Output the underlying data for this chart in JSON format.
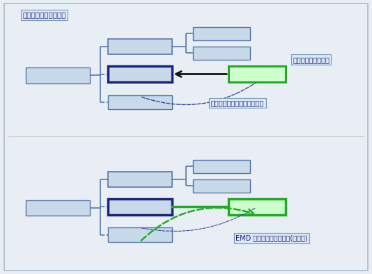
{
  "title": "现有嵌入树和引用关系",
  "bg_outer": "#e8eef4",
  "bg_panel": "#ffffff",
  "box_fill": "#c8daea",
  "box_edge_thin": "#5577aa",
  "box_edge_dark": "#1a237e",
  "box_fill_green": "#ccffcc",
  "box_edge_green": "#22aa22",
  "label1": "要连接到树的新元素",
  "label2": "用户在现有目标上放置新元素",
  "label3": "EMD 确定要创建的新链接(和对象)",
  "label_fill": "#dce8f5",
  "label_edge": "#7799bb",
  "sep_color": "#cccccc",
  "arrow_color": "#111111",
  "dash_color": "#334499"
}
